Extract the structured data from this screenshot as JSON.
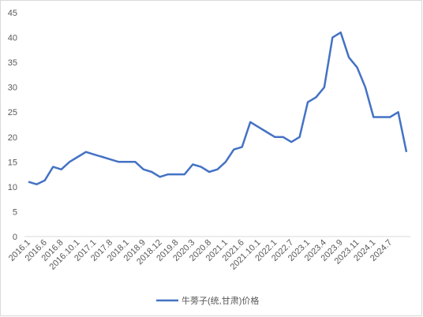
{
  "chart_data": {
    "type": "line",
    "categories": [
      "2016.1",
      null,
      "2016.6",
      null,
      "2016.8",
      null,
      "2016.10.1",
      null,
      "2017.1",
      null,
      "2017.8",
      null,
      "2018.1",
      null,
      "2018.9",
      null,
      "2018.12",
      null,
      "2019.8",
      null,
      "2020.3",
      null,
      "2020.8",
      null,
      "2021.1",
      null,
      "2021.6",
      null,
      "2021.10.1",
      null,
      "2022.1",
      null,
      "2022.7",
      null,
      "2023.1",
      null,
      "2023.4",
      null,
      "2023.9",
      null,
      "2023.11",
      null,
      "2024.1",
      null,
      "2024.7",
      null,
      null
    ],
    "series": [
      {
        "name": "牛蒡子(统,甘肃)价格",
        "color": "#4472c4",
        "values": [
          11,
          10.5,
          11.3,
          14,
          13.5,
          15,
          16,
          17,
          16.5,
          16,
          15.5,
          15,
          15,
          15,
          13.5,
          13,
          12,
          12.5,
          12.5,
          12.5,
          14.5,
          14,
          13,
          13.5,
          15,
          17.5,
          18,
          23,
          22,
          21,
          20,
          20,
          19,
          20,
          27,
          28,
          30,
          40,
          41,
          36,
          34,
          30,
          24,
          24,
          24,
          25,
          17
        ]
      }
    ],
    "ylim": [
      0,
      45
    ],
    "yticks": [
      0,
      5,
      10,
      15,
      20,
      25,
      30,
      35,
      40,
      45
    ],
    "grid": false,
    "legend": "bottom"
  }
}
